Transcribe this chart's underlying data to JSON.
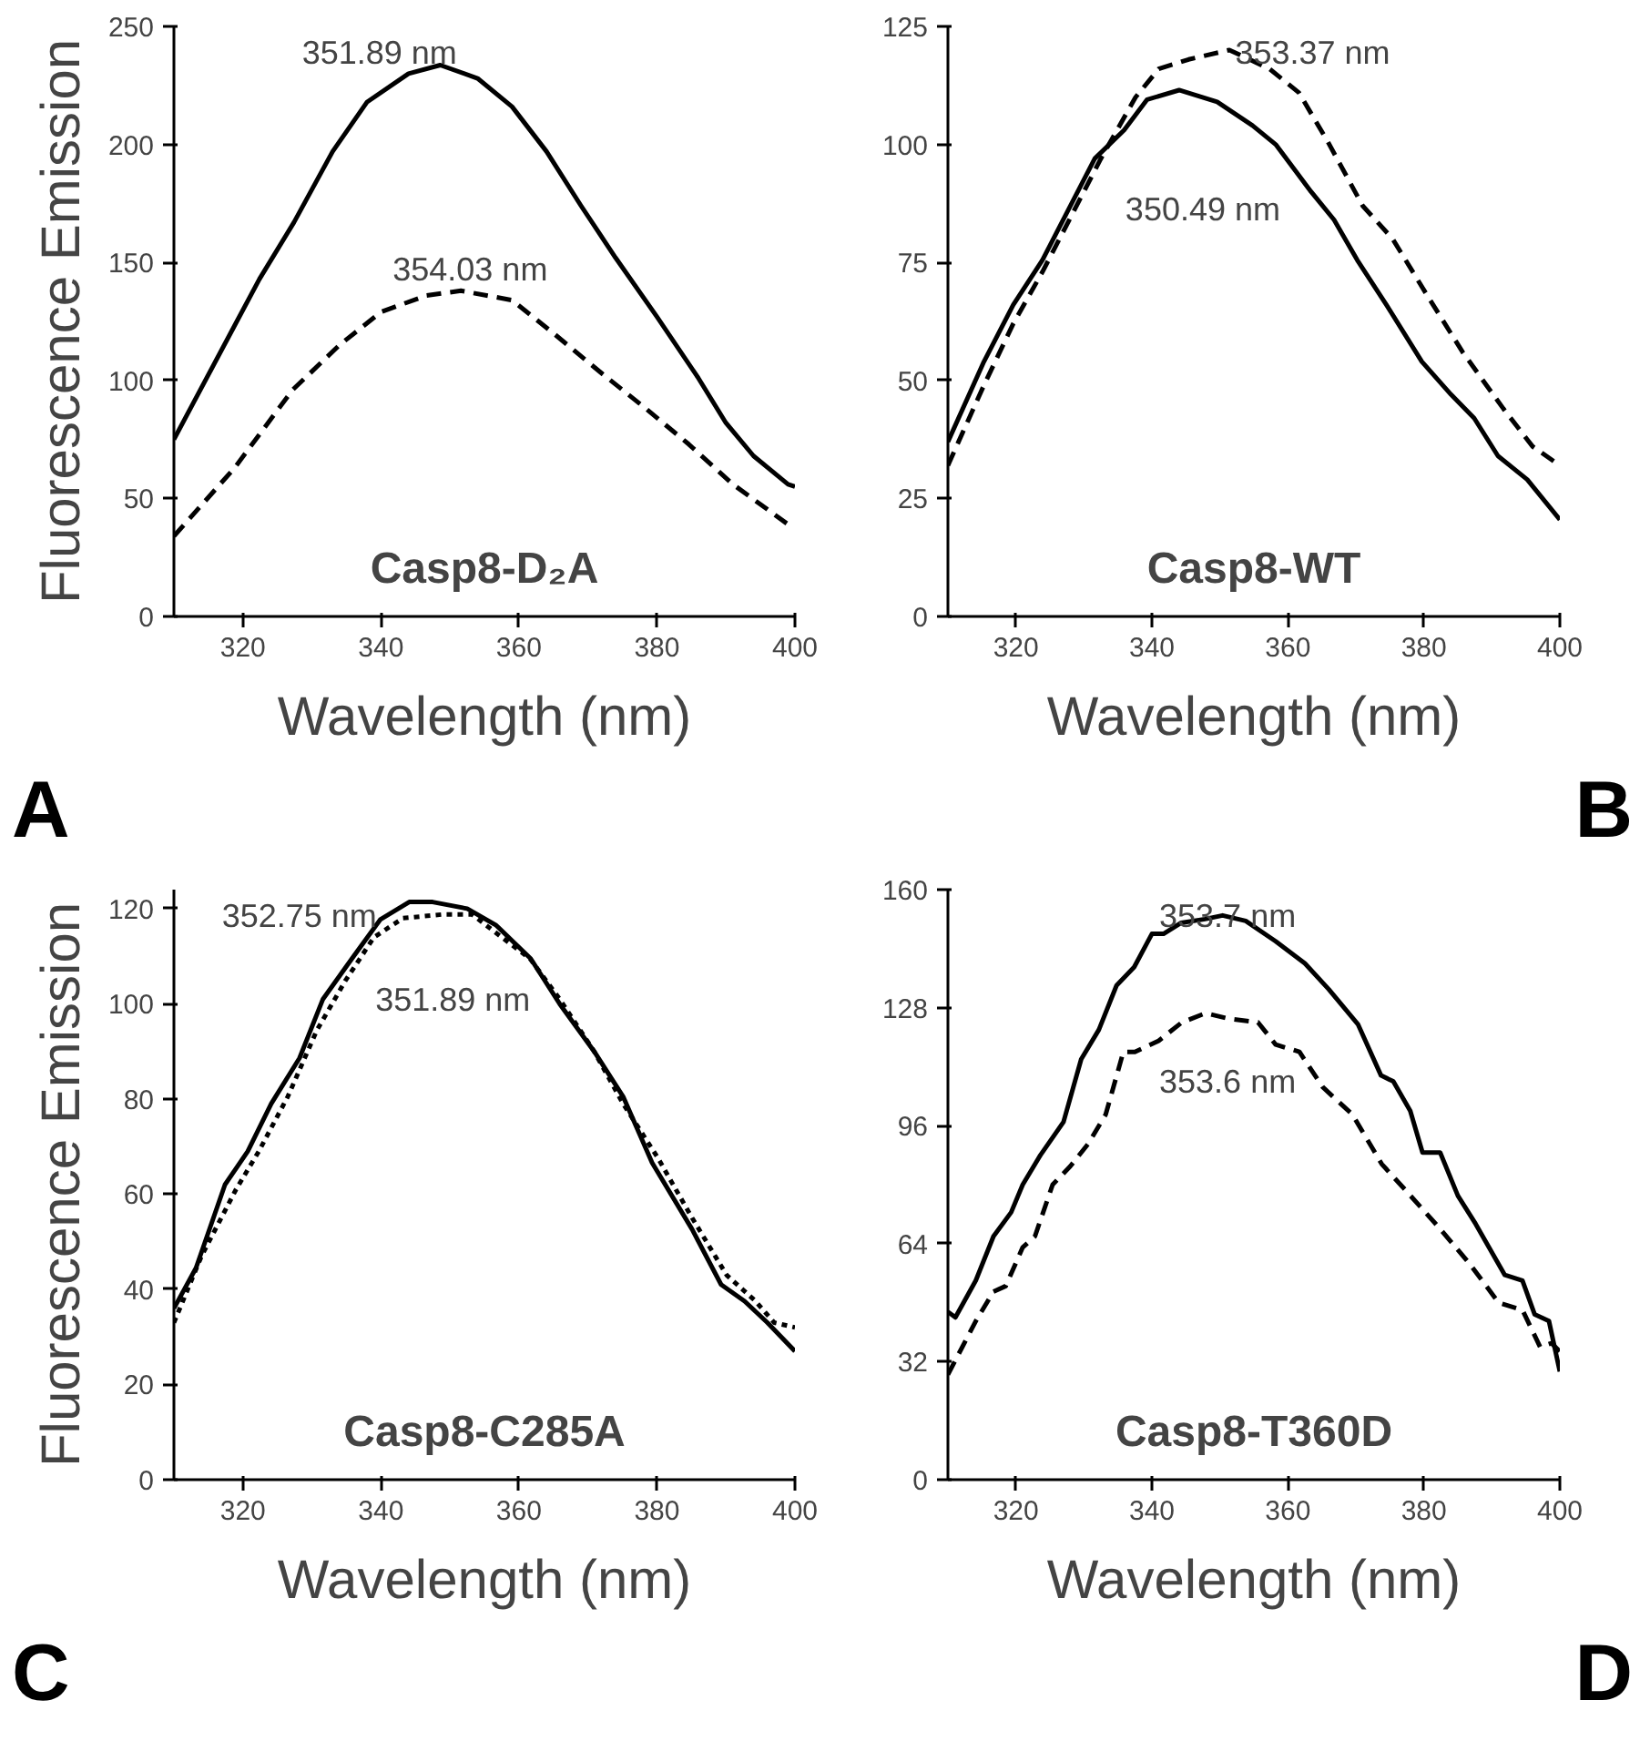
{
  "chart_data": [
    {
      "type": "line",
      "title": "Casp8-D₂A",
      "xlabel": "Wavelength (nm)",
      "ylabel": "Fluorescence Emission",
      "xlim": [
        310,
        400
      ],
      "ylim": [
        0,
        250
      ],
      "xticks": [
        320,
        340,
        360,
        380,
        400
      ],
      "yticks": [
        0,
        50,
        100,
        150,
        200,
        250
      ],
      "series": [
        {
          "color": "#000000",
          "line_style": "solid",
          "x": [
            310,
            313,
            322.4,
            327.4,
            333,
            338,
            344,
            348.6,
            354,
            359,
            364,
            369,
            374,
            380,
            386,
            390,
            394,
            399,
            400
          ],
          "values": [
            75,
            91.5,
            143,
            167,
            197,
            218,
            230,
            233.6,
            228,
            216,
            197,
            174,
            152,
            127,
            101,
            82,
            68,
            56,
            55
          ]
        },
        {
          "color": "#000000",
          "line_style": "dashed",
          "x": [
            310,
            318.8,
            327.2,
            334,
            340,
            346.6,
            351.6,
            359,
            365,
            372,
            378,
            384.6,
            391,
            399,
            400
          ],
          "values": [
            34,
            63,
            96,
            115,
            129,
            136,
            138,
            134,
            120,
            103,
            89,
            73,
            56,
            39,
            38
          ]
        }
      ],
      "annotations": [
        "351.89 nm",
        "354.03 nm",
        "A"
      ]
    },
    {
      "type": "line",
      "title": "Casp8-WT",
      "xlabel": "Wavelength (nm)",
      "xlim": [
        310,
        400
      ],
      "ylim": [
        0,
        125
      ],
      "xticks": [
        320,
        340,
        360,
        380,
        400
      ],
      "yticks": [
        0,
        25,
        50,
        75,
        100,
        125
      ],
      "series": [
        {
          "color": "#000000",
          "line_style": "solid",
          "x": [
            310,
            315.3,
            319.6,
            323.9,
            327.3,
            331.6,
            335.9,
            339.3,
            344,
            349.6,
            354.8,
            358.2,
            363.4,
            366.8,
            370.2,
            374.5,
            379.7,
            384,
            387.4,
            390.9,
            395.2,
            400
          ],
          "values": [
            37,
            54,
            66,
            75.5,
            85,
            97,
            103,
            109.5,
            111.5,
            109,
            104,
            100,
            90,
            84,
            75.5,
            66,
            54,
            47,
            42,
            34,
            29,
            20.5
          ]
        },
        {
          "color": "#000000",
          "line_style": "dashed",
          "x": [
            310,
            315.3,
            319.6,
            323.9,
            328.2,
            332.5,
            337.6,
            341,
            345.4,
            351.4,
            357.3,
            361.6,
            365.9,
            371,
            375.4,
            380.5,
            385.7,
            391.7,
            396,
            400
          ],
          "values": [
            32,
            49,
            62,
            73,
            85,
            97,
            110,
            116,
            118,
            120,
            116,
            111,
            100.5,
            87,
            80,
            68,
            56,
            44,
            36,
            32
          ]
        }
      ],
      "annotations": [
        "353.37 nm",
        "350.49  nm",
        "B"
      ]
    },
    {
      "type": "line",
      "title": "Casp8-C285A",
      "xlabel": "Wavelength (nm)",
      "ylabel": "Fluorescence Emission",
      "xlim": [
        310,
        400
      ],
      "ylim": [
        0,
        124
      ],
      "xticks": [
        320,
        340,
        360,
        380,
        400
      ],
      "yticks": [
        0,
        20,
        40,
        60,
        80,
        100,
        120
      ],
      "series": [
        {
          "color": "#000000",
          "line_style": "solid",
          "x": [
            310,
            313.2,
            317.4,
            320.7,
            324.1,
            328.2,
            331.6,
            335.8,
            339.9,
            344.1,
            347.5,
            352.5,
            356.7,
            361.7,
            365.9,
            370.9,
            375.1,
            379.3,
            385.1,
            389.3,
            392.7,
            396,
            400
          ],
          "values": [
            36,
            44.5,
            62,
            69,
            79,
            88.6,
            101,
            109.5,
            117.7,
            121.4,
            121.4,
            120,
            116.5,
            109.5,
            100,
            90,
            80.5,
            66.6,
            52.6,
            41,
            37.5,
            33,
            27
          ]
        },
        {
          "color": "#000000",
          "line_style": "dotted",
          "x": [
            310,
            314,
            319,
            322.3,
            326.5,
            330.7,
            334.9,
            339,
            343.2,
            349,
            353.2,
            356.6,
            361.6,
            365.9,
            370.9,
            375.1,
            380.1,
            385.1,
            390.1,
            394.3,
            397,
            400
          ],
          "values": [
            33,
            47,
            61,
            69,
            80.5,
            94.4,
            105,
            114,
            118,
            118.8,
            118.8,
            115,
            109.5,
            101,
            90,
            79,
            67.7,
            55,
            43,
            37.5,
            33,
            32
          ]
        }
      ],
      "annotations": [
        "352.75 nm",
        "351.89 nm",
        "C"
      ]
    },
    {
      "type": "line",
      "title": "Casp8-T360D",
      "xlabel": "Wavelength (nm)",
      "xlim": [
        310,
        400
      ],
      "ylim": [
        0,
        160
      ],
      "xticks": [
        320,
        340,
        360,
        380,
        400
      ],
      "yticks": [
        0,
        32,
        64,
        96,
        128,
        160
      ],
      "series": [
        {
          "color": "#000000",
          "line_style": "solid",
          "x": [
            310,
            311.1,
            314.1,
            316.7,
            319.3,
            321,
            323.6,
            327,
            329.6,
            332.2,
            334.8,
            337.4,
            340,
            341.7,
            344.3,
            347.8,
            350.4,
            353.8,
            358.2,
            362.5,
            366,
            370.3,
            373.7,
            375.5,
            378,
            379.8,
            382.4,
            385,
            387.6,
            391.9,
            394.5,
            396.3,
            398.4,
            400
          ],
          "values": [
            45.5,
            44,
            54,
            66,
            72.5,
            80,
            88,
            97,
            114,
            122,
            134,
            139,
            148,
            148,
            151,
            152,
            153,
            151.5,
            146,
            140,
            133,
            123.5,
            109.6,
            108,
            100,
            88.7,
            88.7,
            77,
            69.4,
            55.5,
            54,
            44.8,
            43,
            29.3
          ]
        },
        {
          "color": "#000000",
          "line_style": "dashed",
          "x": [
            310,
            314.1,
            316.7,
            318.5,
            321,
            322.8,
            325.4,
            328,
            330.6,
            333.2,
            335.8,
            337.5,
            341,
            344.4,
            347.9,
            351.3,
            355.6,
            358.2,
            361.7,
            365.1,
            369.5,
            373.8,
            377.2,
            382.4,
            386.7,
            391,
            394.5,
            397.1,
            398.8,
            400
          ],
          "values": [
            28.5,
            43,
            51,
            52.5,
            63,
            66,
            80,
            85,
            91,
            99,
            116,
            116,
            119,
            124,
            126.5,
            125,
            124,
            118,
            116,
            106.5,
            99,
            85.6,
            78.7,
            68,
            58.6,
            48,
            46,
            36,
            37,
            34.7
          ]
        }
      ],
      "annotations": [
        "353.7 nm",
        "353.6 nm",
        "D"
      ]
    }
  ]
}
